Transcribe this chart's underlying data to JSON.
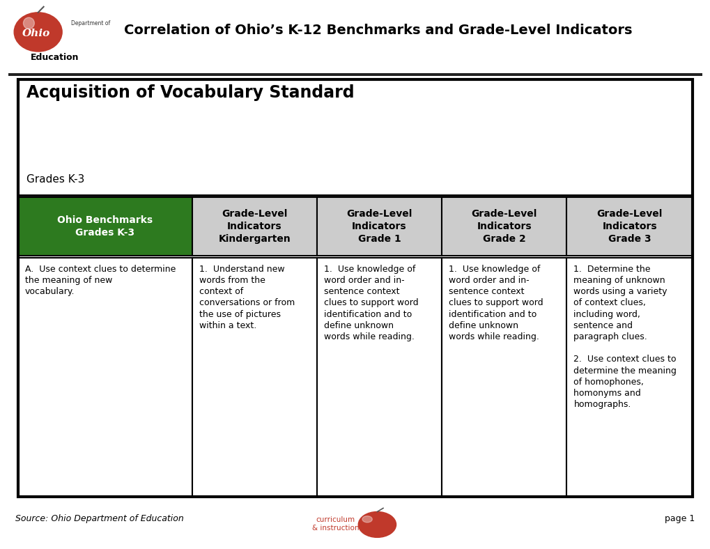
{
  "title": "Correlation of Ohio’s K-12 Benchmarks and Grade-Level Indicators",
  "standard_title": "Acquisition of Vocabulary Standard",
  "grades_subtitle": "Grades K-3",
  "header_col0": "Ohio Benchmarks\nGrades K-3",
  "header_col1": "Grade-Level\nIndicators\nKindergarten",
  "header_col2": "Grade-Level\nIndicators\nGrade 1",
  "header_col3": "Grade-Level\nIndicators\nGrade 2",
  "header_col4": "Grade-Level\nIndicators\nGrade 3",
  "col0_content": "A.  Use context clues to determine\nthe meaning of new\nvocabulary.",
  "col1_content": "1.  Understand new\nwords from the\ncontext of\nconversations or from\nthe use of pictures\nwithin a text.",
  "col2_content": "1.  Use knowledge of\nword order and in-\nsentence context\nclues to support word\nidentification and to\ndefine unknown\nwords while reading.",
  "col3_content": "1.  Use knowledge of\nword order and in-\nsentence context\nclues to support word\nidentification and to\ndefine unknown\nwords while reading.",
  "col4_content": "1.  Determine the\nmeaning of unknown\nwords using a variety\nof context clues,\nincluding word,\nsentence and\nparagraph clues.\n\n2.  Use context clues to\ndetermine the meaning\nof homophones,\nhomonyms and\nhomographs.",
  "footer_left": "Source: Ohio Department of Education",
  "footer_right": "page 1",
  "green_color": "#2d7a1f",
  "light_gray": "#cccccc",
  "white": "#ffffff",
  "bg_color": "#ffffff",
  "fig_width": 10.2,
  "fig_height": 7.88
}
